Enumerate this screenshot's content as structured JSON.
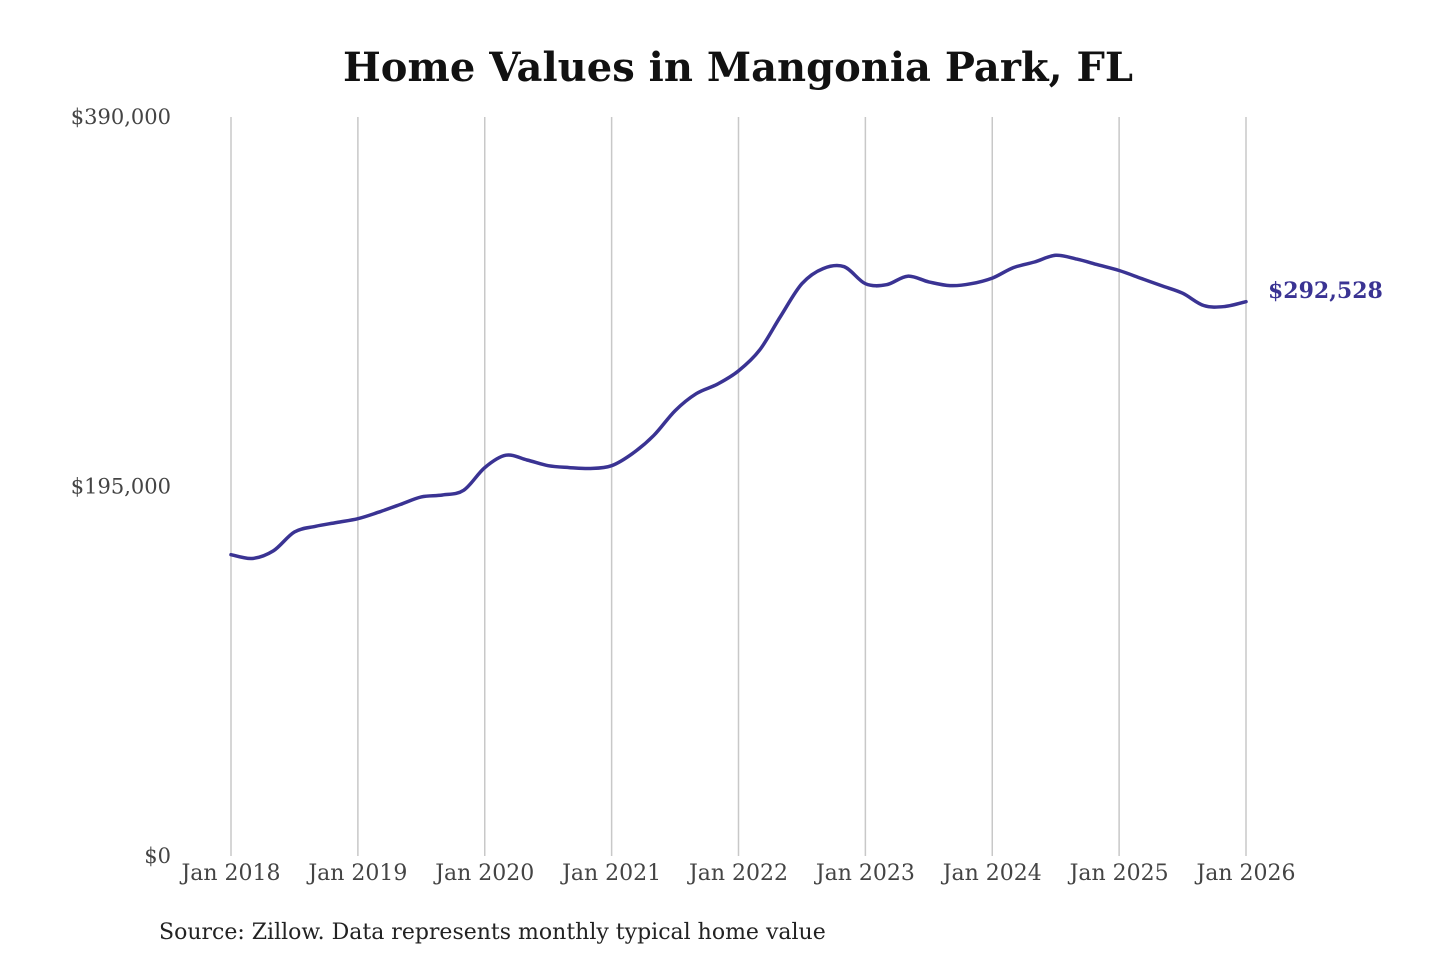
{
  "chart_data": {
    "type": "line",
    "title": "Home Values in Mangonia Park, FL",
    "source": "Source: Zillow. Data represents monthly typical home value",
    "xlabel": "",
    "ylabel": "",
    "y_ticks": [
      "$390,000",
      "$195,000",
      "$0"
    ],
    "y_tick_values": [
      390000,
      195000,
      0
    ],
    "ylim": [
      0,
      390000
    ],
    "x_tick_labels": [
      "Jan 2018",
      "Jan 2019",
      "Jan 2020",
      "Jan 2021",
      "Jan 2022",
      "Jan 2023",
      "Jan 2024",
      "Jan 2025",
      "Jan 2026"
    ],
    "x_range": [
      "2018-01",
      "2026-01"
    ],
    "grid": "vertical",
    "line_color": "#3a3393",
    "end_label": "$292,528",
    "series": [
      {
        "points": [
          [
            "2018-01",
            159000
          ],
          [
            "2018-03",
            157000
          ],
          [
            "2018-05",
            161000
          ],
          [
            "2018-07",
            171000
          ],
          [
            "2018-09",
            174000
          ],
          [
            "2018-11",
            176000
          ],
          [
            "2019-01",
            178000
          ],
          [
            "2019-03",
            181500
          ],
          [
            "2019-05",
            185500
          ],
          [
            "2019-07",
            189500
          ],
          [
            "2019-09",
            190500
          ],
          [
            "2019-11",
            193000
          ],
          [
            "2020-01",
            205000
          ],
          [
            "2020-03",
            211500
          ],
          [
            "2020-05",
            209000
          ],
          [
            "2020-07",
            206000
          ],
          [
            "2020-09",
            205000
          ],
          [
            "2020-11",
            204500
          ],
          [
            "2021-01",
            206000
          ],
          [
            "2021-03",
            212500
          ],
          [
            "2021-05",
            222000
          ],
          [
            "2021-07",
            235000
          ],
          [
            "2021-09",
            244000
          ],
          [
            "2021-11",
            249000
          ],
          [
            "2022-01",
            256000
          ],
          [
            "2022-03",
            267000
          ],
          [
            "2022-05",
            285000
          ],
          [
            "2022-07",
            302000
          ],
          [
            "2022-09",
            310000
          ],
          [
            "2022-11",
            311000
          ],
          [
            "2023-01",
            302000
          ],
          [
            "2023-03",
            301500
          ],
          [
            "2023-05",
            306000
          ],
          [
            "2023-07",
            303000
          ],
          [
            "2023-09",
            301000
          ],
          [
            "2023-11",
            302000
          ],
          [
            "2024-01",
            305000
          ],
          [
            "2024-03",
            310500
          ],
          [
            "2024-05",
            313500
          ],
          [
            "2024-07",
            317000
          ],
          [
            "2024-09",
            315000
          ],
          [
            "2024-11",
            312000
          ],
          [
            "2025-01",
            309000
          ],
          [
            "2025-03",
            305000
          ],
          [
            "2025-05",
            301000
          ],
          [
            "2025-07",
            297000
          ],
          [
            "2025-09",
            290500
          ],
          [
            "2025-11",
            290000
          ],
          [
            "2026-01",
            292528
          ]
        ]
      }
    ]
  }
}
